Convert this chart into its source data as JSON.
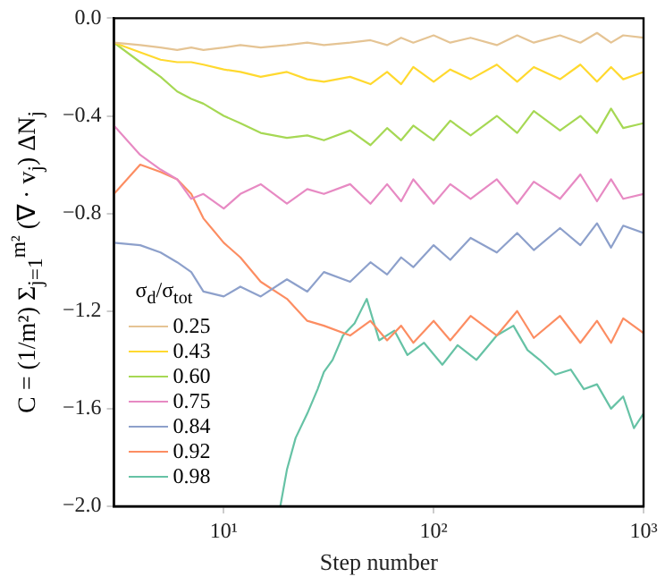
{
  "chart_data": {
    "type": "line",
    "xlabel": "Step number",
    "ylabel": "C = (1/m²) Σ$_{j=1}$$^{m²}$ (∇ · v$_{j}$) ΔN$_{j}$",
    "legend_title": "σ$_{d}$/σ$_{tot}$",
    "legend": "bottom left",
    "grid": false,
    "log": "x",
    "marker": "none",
    "line_style": "solid",
    "xlim": [
      3,
      1000
    ],
    "xticks": [
      {
        "value": 10,
        "label": "10¹"
      },
      {
        "value": 100,
        "label": "10²"
      },
      {
        "value": 1000,
        "label": "10³"
      }
    ],
    "ylim": [
      -2.0,
      0.0
    ],
    "yticks": [
      {
        "value": -2.0,
        "label": "−2.0"
      },
      {
        "value": -1.6,
        "label": "−1.6"
      },
      {
        "value": -1.2,
        "label": "−1.2"
      },
      {
        "value": -0.8,
        "label": "−0.8"
      },
      {
        "value": -0.4,
        "label": "−0.4"
      },
      {
        "value": 0,
        "label": "0.0"
      }
    ],
    "x": [
      3,
      4,
      5,
      6,
      7,
      8,
      10,
      12,
      15,
      20,
      25,
      30,
      40,
      50,
      60,
      70,
      80,
      100,
      120,
      150,
      200,
      250,
      300,
      400,
      500,
      600,
      700,
      800,
      1000
    ],
    "series": [
      {
        "name": "0.25",
        "color": "#e5c494",
        "values": [
          -0.1,
          -0.11,
          -0.12,
          -0.13,
          -0.12,
          -0.13,
          -0.12,
          -0.11,
          -0.12,
          -0.11,
          -0.1,
          -0.11,
          -0.1,
          -0.09,
          -0.11,
          -0.08,
          -0.1,
          -0.07,
          -0.1,
          -0.08,
          -0.11,
          -0.07,
          -0.1,
          -0.07,
          -0.1,
          -0.06,
          -0.1,
          -0.07,
          -0.08
        ]
      },
      {
        "name": "0.43",
        "color": "#ffd92f",
        "values": [
          -0.1,
          -0.14,
          -0.17,
          -0.18,
          -0.18,
          -0.19,
          -0.21,
          -0.22,
          -0.24,
          -0.22,
          -0.25,
          -0.26,
          -0.24,
          -0.27,
          -0.22,
          -0.27,
          -0.2,
          -0.26,
          -0.21,
          -0.25,
          -0.19,
          -0.26,
          -0.2,
          -0.25,
          -0.19,
          -0.26,
          -0.2,
          -0.25,
          -0.22
        ]
      },
      {
        "name": "0.60",
        "color": "#a6d854",
        "values": [
          -0.1,
          -0.18,
          -0.24,
          -0.3,
          -0.33,
          -0.35,
          -0.4,
          -0.43,
          -0.47,
          -0.49,
          -0.48,
          -0.5,
          -0.46,
          -0.52,
          -0.45,
          -0.5,
          -0.44,
          -0.5,
          -0.42,
          -0.48,
          -0.4,
          -0.47,
          -0.38,
          -0.46,
          -0.4,
          -0.47,
          -0.37,
          -0.45,
          -0.43
        ]
      },
      {
        "name": "0.75",
        "color": "#e78ac3",
        "values": [
          -0.44,
          -0.56,
          -0.62,
          -0.66,
          -0.74,
          -0.72,
          -0.78,
          -0.72,
          -0.68,
          -0.76,
          -0.7,
          -0.72,
          -0.68,
          -0.76,
          -0.68,
          -0.75,
          -0.66,
          -0.76,
          -0.68,
          -0.74,
          -0.66,
          -0.76,
          -0.67,
          -0.74,
          -0.64,
          -0.75,
          -0.66,
          -0.74,
          -0.72
        ]
      },
      {
        "name": "0.84",
        "color": "#8da0cb",
        "values": [
          -0.92,
          -0.93,
          -0.96,
          -1.0,
          -1.04,
          -1.12,
          -1.14,
          -1.1,
          -1.14,
          -1.07,
          -1.12,
          -1.04,
          -1.08,
          -1.0,
          -1.05,
          -0.98,
          -1.02,
          -0.93,
          -0.99,
          -0.9,
          -0.96,
          -0.88,
          -0.95,
          -0.86,
          -0.93,
          -0.84,
          -0.94,
          -0.85,
          -0.88
        ]
      },
      {
        "name": "0.92",
        "color": "#fc8d62",
        "values": [
          -0.72,
          -0.6,
          -0.63,
          -0.66,
          -0.72,
          -0.82,
          -0.92,
          -0.98,
          -1.08,
          -1.15,
          -1.24,
          -1.26,
          -1.3,
          -1.24,
          -1.32,
          -1.26,
          -1.33,
          -1.24,
          -1.32,
          -1.22,
          -1.3,
          -1.2,
          -1.31,
          -1.22,
          -1.33,
          -1.24,
          -1.33,
          -1.23,
          -1.29
        ]
      },
      {
        "name": "0.98",
        "color": "#66c2a5",
        "x": [
          18.6,
          20,
          22,
          25,
          28,
          30,
          33,
          37,
          42,
          48,
          55,
          65,
          75,
          90,
          110,
          130,
          160,
          200,
          240,
          280,
          320,
          380,
          450,
          520,
          600,
          700,
          800,
          900,
          1000
        ],
        "values": [
          -2.0,
          -1.85,
          -1.72,
          -1.62,
          -1.52,
          -1.45,
          -1.4,
          -1.3,
          -1.25,
          -1.15,
          -1.32,
          -1.28,
          -1.38,
          -1.33,
          -1.42,
          -1.34,
          -1.4,
          -1.3,
          -1.26,
          -1.36,
          -1.4,
          -1.46,
          -1.44,
          -1.52,
          -1.5,
          -1.6,
          -1.55,
          -1.68,
          -1.62
        ]
      }
    ]
  }
}
